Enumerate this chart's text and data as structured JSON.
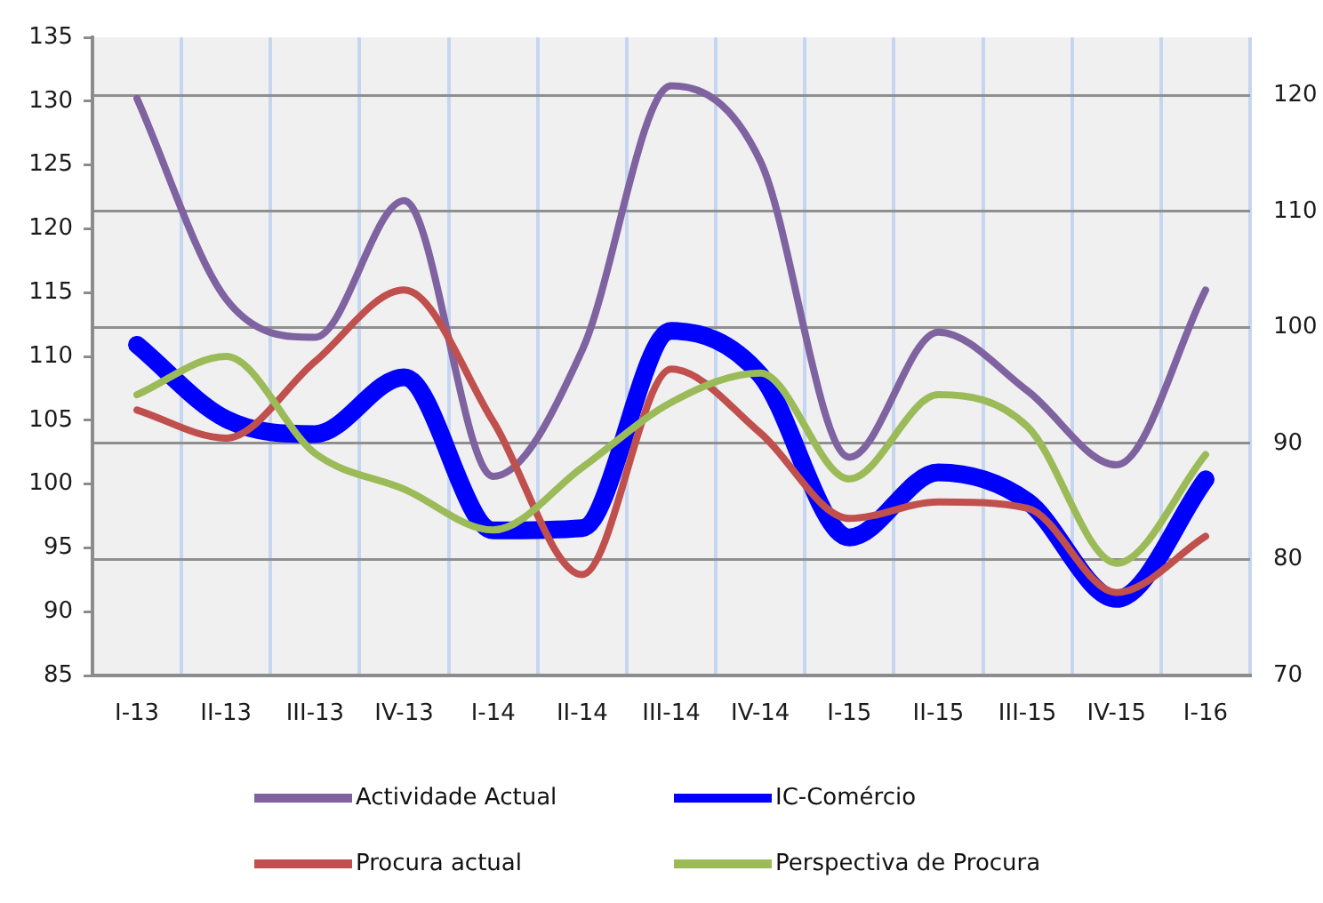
{
  "chart_data": {
    "type": "line",
    "categories": [
      "I-13",
      "II-13",
      "III-13",
      "IV-13",
      "I-14",
      "II-14",
      "III-14",
      "IV-14",
      "I-15",
      "II-15",
      "III-15",
      "IV-15",
      "I-16"
    ],
    "series": [
      {
        "name": "Actividade Actual",
        "color": "#7f63a1",
        "values": [
          130.2,
          114.5,
          111.5,
          122.2,
          100.6,
          110.5,
          131.2,
          125.3,
          102.1,
          111.9,
          107.3,
          101.5,
          115.2
        ]
      },
      {
        "name": "IC-Comércio",
        "color": "#0000ff",
        "axis": "y2",
        "values": [
          98.5,
          92.1,
          90.8,
          95.7,
          82.5,
          82.7,
          99.7,
          95.9,
          81.9,
          87.5,
          85.0,
          76.6,
          86.9
        ]
      },
      {
        "name": "Procura actual",
        "color": "#c0504d",
        "values": [
          105.8,
          103.6,
          109.6,
          115.2,
          104.9,
          92.9,
          109.0,
          104.0,
          97.3,
          98.6,
          98.1,
          91.5,
          95.9
        ]
      },
      {
        "name": "Perspectiva de Procura",
        "color": "#9bbb59",
        "values": [
          107.0,
          110.0,
          102.4,
          99.6,
          96.4,
          101.3,
          106.4,
          108.7,
          100.4,
          107.0,
          104.5,
          93.8,
          102.3
        ]
      }
    ],
    "ylim": [
      85,
      135
    ],
    "yticks": [
      85,
      90,
      95,
      100,
      105,
      110,
      115,
      120,
      125,
      130,
      135
    ],
    "y2lim": [
      70,
      125
    ],
    "y2ticks": [
      70,
      80,
      90,
      100,
      110,
      120
    ],
    "grid": true,
    "legend": "bottom"
  }
}
